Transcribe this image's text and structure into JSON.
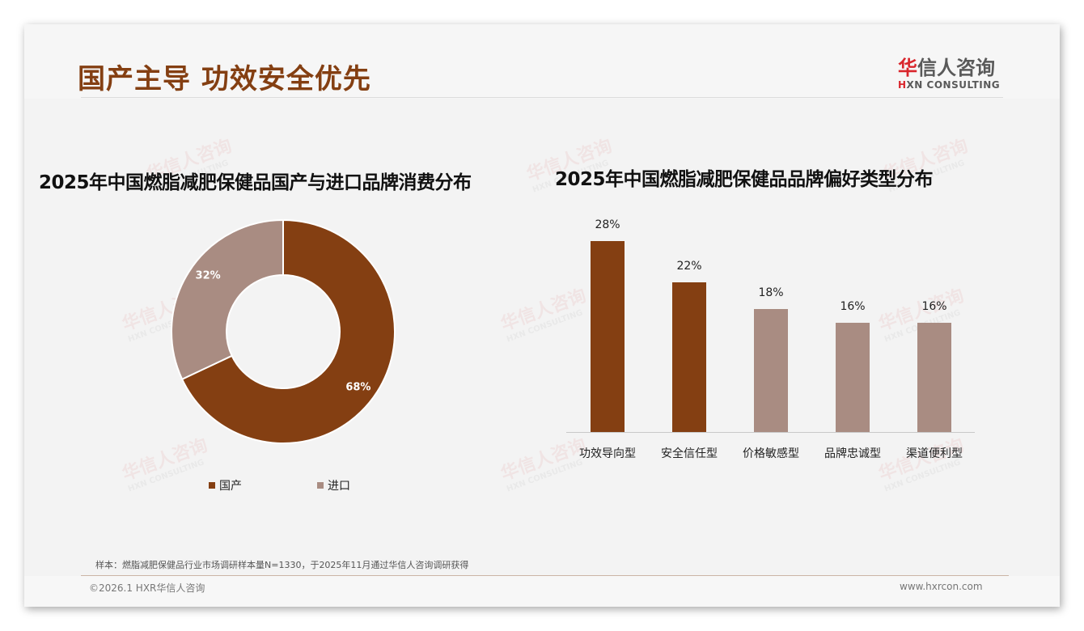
{
  "header": {
    "title": "国产主导 功效安全优先",
    "logo_cn_first": "华",
    "logo_cn_rest": "信人咨询",
    "logo_en_first": "H",
    "logo_en_rest": "XN CONSULTING"
  },
  "watermark": {
    "cn": "华信人咨询",
    "en": "HXN CONSULTING"
  },
  "left_chart": {
    "title": "2025年中国燃脂减肥保健品国产与进口品牌消费分布",
    "slices": [
      {
        "label": "国产",
        "value": 68,
        "display": "68%",
        "color": "#843f12"
      },
      {
        "label": "进口",
        "value": 32,
        "display": "32%",
        "color": "#a98c82"
      }
    ],
    "legend": [
      {
        "label": "国产",
        "color": "#843f12"
      },
      {
        "label": "进口",
        "color": "#a98c82"
      }
    ]
  },
  "right_chart": {
    "title": "2025年中国燃脂减肥保健品品牌偏好类型分布",
    "bars": [
      {
        "label": "功效导向型",
        "value": 28,
        "display": "28%",
        "color": "#843f12"
      },
      {
        "label": "安全信任型",
        "value": 22,
        "display": "22%",
        "color": "#843f12"
      },
      {
        "label": "价格敏感型",
        "value": 18,
        "display": "18%",
        "color": "#a98c82"
      },
      {
        "label": "品牌忠诚型",
        "value": 16,
        "display": "16%",
        "color": "#a98c82"
      },
      {
        "label": "渠道便利型",
        "value": 16,
        "display": "16%",
        "color": "#a98c82"
      }
    ]
  },
  "footer": {
    "sample_note": "样本：燃脂减肥保健品行业市场调研样本量N=1330，于2025年11月通过华信人咨询调研获得",
    "copyright": "©2026.1 HXR华信人咨询",
    "website": "www.hxrcon.com"
  },
  "chart_data": [
    {
      "type": "pie",
      "title": "2025年中国燃脂减肥保健品国产与进口品牌消费分布",
      "categories": [
        "国产",
        "进口"
      ],
      "values": [
        68,
        32
      ],
      "unit": "%",
      "donut": true,
      "legend_position": "bottom"
    },
    {
      "type": "bar",
      "title": "2025年中国燃脂减肥保健品品牌偏好类型分布",
      "categories": [
        "功效导向型",
        "安全信任型",
        "价格敏感型",
        "品牌忠诚型",
        "渠道便利型"
      ],
      "values": [
        28,
        22,
        18,
        16,
        16
      ],
      "unit": "%",
      "xlabel": "",
      "ylabel": "",
      "grid": false,
      "data_labels": true
    }
  ]
}
